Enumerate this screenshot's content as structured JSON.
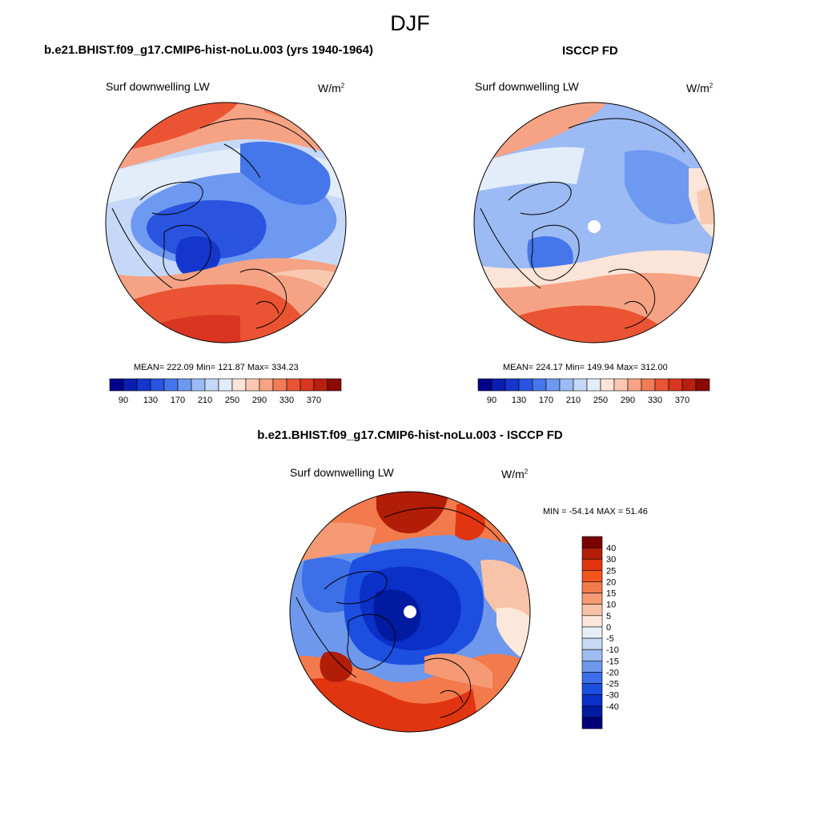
{
  "title": "DJF",
  "panels": {
    "model": {
      "title": "b.e21.BHIST.f09_g17.CMIP6-hist-noLu.003 (yrs 1940-1964)",
      "variable": "Surf downwelling LW",
      "unit_base": "W/m",
      "unit_exp": "2",
      "stats": "MEAN= 222.09  Min= 121.87  Max= 334.23"
    },
    "obs": {
      "title": "ISCCP FD",
      "variable": "Surf downwelling LW",
      "unit_base": "W/m",
      "unit_exp": "2",
      "stats": "MEAN= 224.17  Min= 149.94  Max= 312.00"
    },
    "diff": {
      "title": "b.e21.BHIST.f09_g17.CMIP6-hist-noLu.003 - ISCCP FD",
      "variable": "Surf downwelling LW",
      "unit_base": "W/m",
      "unit_exp": "2",
      "stats": "MIN = -54.14 MAX =  51.46"
    }
  },
  "colorbar_abs": {
    "labels": [
      "90",
      "130",
      "170",
      "210",
      "250",
      "290",
      "330",
      "370"
    ],
    "colors": [
      "#00008b",
      "#0a1eb0",
      "#1436cc",
      "#2a54e0",
      "#4677ea",
      "#6e99f0",
      "#9cbaf3",
      "#c6d8f7",
      "#e3edfa",
      "#fbe4d8",
      "#f8c8b0",
      "#f5a384",
      "#f17c58",
      "#ea5433",
      "#d93520",
      "#b81f12",
      "#8b0a05"
    ]
  },
  "colorbar_diff": {
    "labels": [
      "40",
      "30",
      "25",
      "20",
      "15",
      "10",
      "5",
      "0",
      "-5",
      "-10",
      "-15",
      "-20",
      "-25",
      "-30",
      "-40"
    ],
    "colors": [
      "#7a0000",
      "#b21d08",
      "#e03510",
      "#f4541e",
      "#f37a4c",
      "#f59a74",
      "#f8c3a8",
      "#fbe8da",
      "#e8eff9",
      "#c9daf4",
      "#9fbdf0",
      "#6e98ec",
      "#3d6fe8",
      "#1c4ee0",
      "#0a30c8",
      "#001aa0",
      "#000078"
    ]
  },
  "map_colors": {
    "warm_strong": "#ea5433",
    "warm_mid": "#f5a384",
    "warm_light": "#fbe4d8",
    "cool_light": "#c6d8f7",
    "cool_mid": "#6e99f0",
    "cool_strong": "#2a54e0",
    "cool_deep": "#0a1eb0"
  }
}
